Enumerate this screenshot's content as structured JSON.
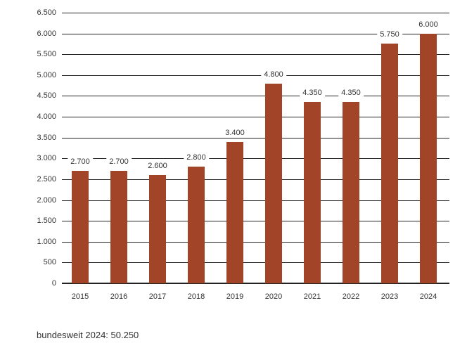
{
  "chart_data": {
    "type": "bar",
    "title": "",
    "xlabel": "",
    "ylabel": "",
    "categories": [
      "2015",
      "2016",
      "2017",
      "2018",
      "2019",
      "2020",
      "2021",
      "2022",
      "2023",
      "2024"
    ],
    "values": [
      2700,
      2700,
      2600,
      2800,
      3400,
      4800,
      4350,
      4350,
      5750,
      6000
    ],
    "value_labels": [
      "2.700",
      "2.700",
      "2.600",
      "2.800",
      "3.400",
      "4.800",
      "4.350",
      "4.350",
      "5.750",
      "6.000"
    ],
    "ylim": [
      0,
      6500
    ],
    "yticks": [
      0,
      500,
      1000,
      1500,
      2000,
      2500,
      3000,
      3500,
      4000,
      4500,
      5000,
      5500,
      6000,
      6500
    ],
    "ytick_labels": [
      "0",
      "500",
      "1.000",
      "1.500",
      "2.000",
      "2.500",
      "3.000",
      "3.500",
      "4.000",
      "4.500",
      "5.000",
      "5.500",
      "6.000",
      "6.500"
    ],
    "grid": true,
    "legend": null,
    "bar_color": "#a24428"
  },
  "footnote": "bundesweit 2024: 50.250"
}
